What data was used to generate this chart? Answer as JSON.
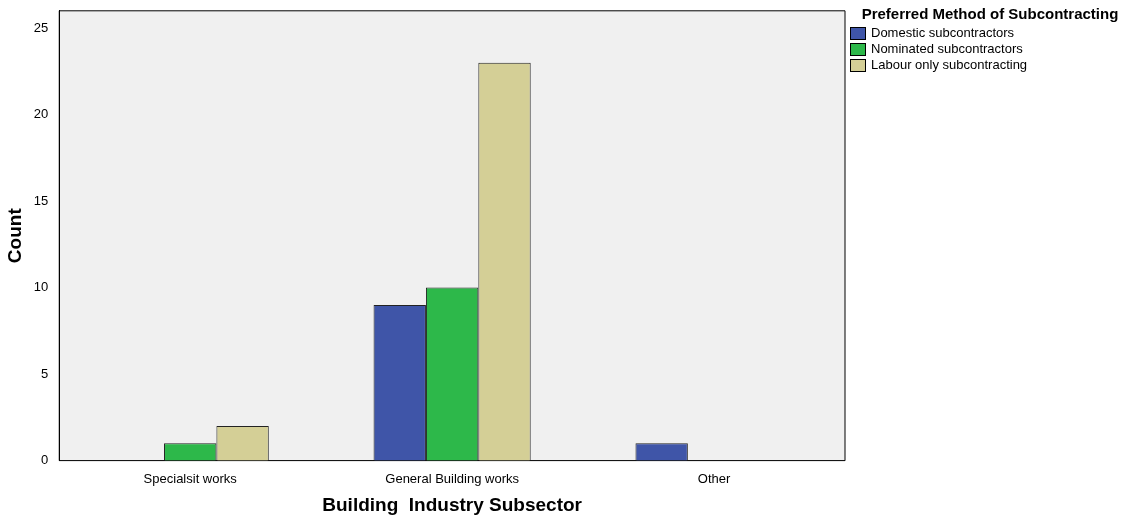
{
  "chart_data": {
    "type": "bar",
    "xlabel": "Building  Industry Subsector",
    "ylabel": "Count",
    "legend_title": "Preferred Method of Subcontracting",
    "legend": "top right",
    "grid": false,
    "categories": [
      "Specialsit works",
      "General Building works",
      "Other"
    ],
    "series": [
      {
        "name": "Domestic subcontractors",
        "color": "#3f55a8",
        "values": [
          null,
          9,
          1
        ]
      },
      {
        "name": "Nominated subcontractors",
        "color": "#2db84a",
        "values": [
          1,
          10,
          null
        ]
      },
      {
        "name": "Labour only subcontracting",
        "color": "#d4cf96",
        "values": [
          2,
          23,
          null
        ]
      }
    ],
    "ylim": [
      0,
      26
    ],
    "yticks": [
      0,
      5,
      10,
      15,
      20,
      25
    ]
  }
}
